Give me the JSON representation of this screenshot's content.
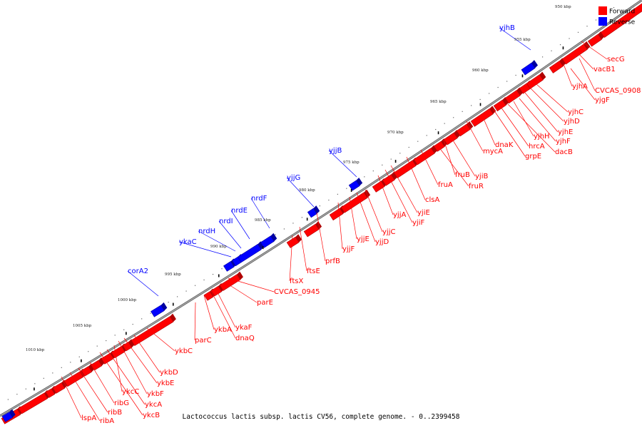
{
  "caption": "Lactococcus lactis subsp. lactis CV56, complete genome. - 0..2399458",
  "legend": [
    {
      "label": "Forward",
      "color": "#ff0000"
    },
    {
      "label": "Reverse",
      "color": "#0000ff"
    }
  ],
  "colors": {
    "forward": "#ff0000",
    "reverse": "#0000ff",
    "backbone": "#888888"
  },
  "ticks": [
    "950 kbp",
    "955 kbp",
    "960 kbp",
    "965 kbp",
    "970 kbp",
    "975 kbp",
    "980 kbp",
    "985 kbp",
    "990 kbp",
    "995 kbp",
    "1000 kbp",
    "1005 kbp",
    "1010 kbp"
  ],
  "reverse_genes": [
    "yjhB",
    "yjjG",
    "yjjB",
    "nrdF",
    "nrdE",
    "nrdI",
    "nrdH",
    "ykaC",
    "corA2"
  ],
  "forward_genes": [
    "secG",
    "vacB1",
    "yjhA",
    "CVCAS_0908",
    "yjgF",
    "yjhC",
    "yjhD",
    "yjhE",
    "yjhF",
    "yjhH",
    "dacB",
    "hrcA",
    "grpE",
    "dnaK",
    "mycA",
    "yjiB",
    "fruB",
    "fruR",
    "fruA",
    "clsA",
    "yjiE",
    "yjiF",
    "yjjA",
    "yjjC",
    "yjjD",
    "yjjE",
    "yjjF",
    "prfB",
    "ftsE",
    "ftsX",
    "CVCAS_0945",
    "parE",
    "ykaF",
    "dnaQ",
    "ykbA",
    "parC",
    "ykbC",
    "ykbD",
    "ykbE",
    "ykbF",
    "ykcC",
    "ykcA",
    "ykcB",
    "ribG",
    "ribB",
    "ribA",
    "lspA"
  ]
}
